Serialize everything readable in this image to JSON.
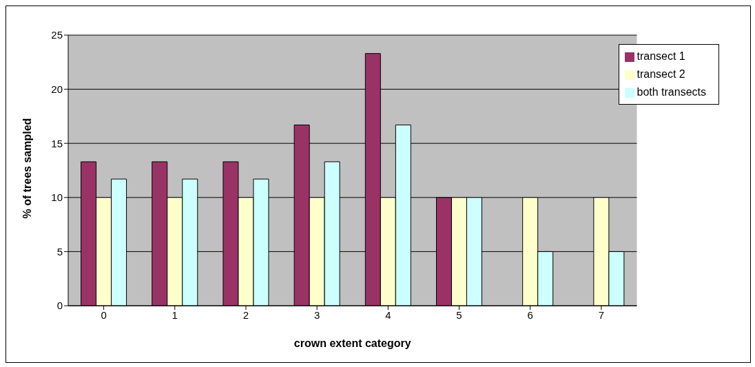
{
  "chart_data": {
    "type": "bar",
    "xlabel": "crown extent category",
    "ylabel": "% of trees sampled",
    "categories": [
      "0",
      "1",
      "2",
      "3",
      "4",
      "5",
      "6",
      "7"
    ],
    "series": [
      {
        "name": "transect 1",
        "color": "#993366",
        "values": [
          13.3,
          13.3,
          13.3,
          16.7,
          23.3,
          10,
          0,
          0
        ]
      },
      {
        "name": "transect 2",
        "color": "#ffffcc",
        "values": [
          10,
          10,
          10,
          10,
          10,
          10,
          10,
          10
        ]
      },
      {
        "name": "both transects",
        "color": "#ccffff",
        "values": [
          11.7,
          11.7,
          11.7,
          13.3,
          16.7,
          10,
          5,
          5
        ]
      }
    ],
    "ylim": [
      0,
      25
    ],
    "yticks": [
      0,
      5,
      10,
      15,
      20,
      25
    ],
    "grid": "y",
    "legend": "top right"
  }
}
